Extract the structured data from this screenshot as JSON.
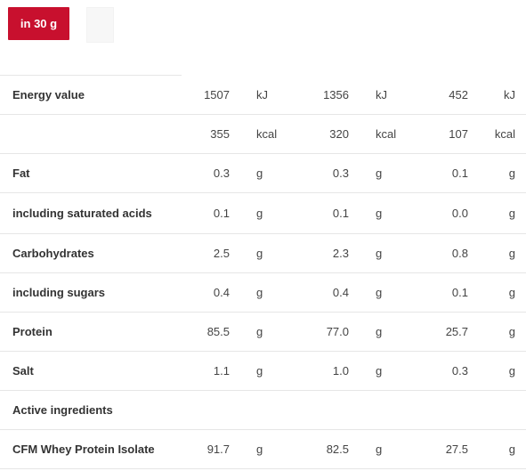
{
  "tabs": {
    "active_label": "in 30 g"
  },
  "rows": [
    {
      "name": "Energy value",
      "values": [
        "1507",
        "1356",
        "452"
      ],
      "unit": "kJ"
    },
    {
      "name": "",
      "values": [
        "355",
        "320",
        "107"
      ],
      "unit": "kcal"
    },
    {
      "name": "Fat",
      "values": [
        "0.3",
        "0.3",
        "0.1"
      ],
      "unit": "g"
    },
    {
      "name": "including saturated acids",
      "values": [
        "0.1",
        "0.1",
        "0.0"
      ],
      "unit": "g"
    },
    {
      "name": "Carbohydrates",
      "values": [
        "2.5",
        "2.3",
        "0.8"
      ],
      "unit": "g"
    },
    {
      "name": "including sugars",
      "values": [
        "0.4",
        "0.4",
        "0.1"
      ],
      "unit": "g"
    },
    {
      "name": "Protein",
      "values": [
        "85.5",
        "77.0",
        "25.7"
      ],
      "unit": "g"
    },
    {
      "name": "Salt",
      "values": [
        "1.1",
        "1.0",
        "0.3"
      ],
      "unit": "g"
    },
    {
      "name": "Active ingredients",
      "values": [
        "",
        "",
        ""
      ],
      "unit": ""
    },
    {
      "name": "CFM Whey Protein Isolate",
      "values": [
        "91.7",
        "82.5",
        "27.5"
      ],
      "unit": "g"
    }
  ]
}
